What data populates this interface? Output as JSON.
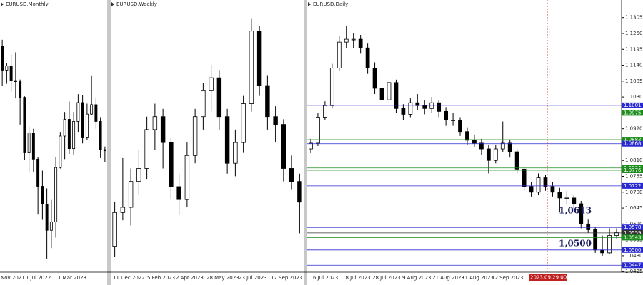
{
  "panels": [
    {
      "title": "EURUSD,Monthly",
      "xlabels": [
        "Nov 2021",
        "1 Jul 2022",
        "1 Mar 2023"
      ],
      "ylim": [
        0.94,
        1.2
      ],
      "candles": [
        [
          1.156,
          1.162,
          1.118,
          1.133
        ],
        [
          1.133,
          1.14,
          1.12,
          1.137
        ],
        [
          1.137,
          1.148,
          1.112,
          1.123
        ],
        [
          1.123,
          1.15,
          1.106,
          1.122
        ],
        [
          1.122,
          1.124,
          1.081,
          1.107
        ],
        [
          1.107,
          1.108,
          1.047,
          1.054
        ],
        [
          1.054,
          1.079,
          1.035,
          1.073
        ],
        [
          1.073,
          1.077,
          1.036,
          1.048
        ],
        [
          1.048,
          1.05,
          0.995,
          1.022
        ],
        [
          1.022,
          1.037,
          0.99,
          1.005
        ],
        [
          1.005,
          1.02,
          0.953,
          0.98
        ],
        [
          0.98,
          1.009,
          0.963,
          0.988
        ],
        [
          0.988,
          1.05,
          0.973,
          1.04
        ],
        [
          1.04,
          1.074,
          1.039,
          1.07
        ],
        [
          1.07,
          1.093,
          1.048,
          1.086
        ],
        [
          1.086,
          1.103,
          1.053,
          1.058
        ],
        [
          1.058,
          1.093,
          1.052,
          1.084
        ],
        [
          1.084,
          1.11,
          1.074,
          1.102
        ],
        [
          1.102,
          1.109,
          1.063,
          1.069
        ],
        [
          1.069,
          1.101,
          1.066,
          1.091
        ],
        [
          1.091,
          1.128,
          1.09,
          1.1
        ],
        [
          1.1,
          1.106,
          1.077,
          1.084
        ],
        [
          1.084,
          1.088,
          1.049,
          1.057
        ],
        [
          1.057,
          1.06,
          1.045,
          1.056
        ]
      ]
    },
    {
      "title": "EURUSD,Weekly",
      "xlabels": [
        "11 Dec 2022",
        "5 Feb 2023",
        "2 Apr 2023",
        "28 May 2023",
        "23 Jul 2023",
        "17 Sep 2023"
      ],
      "ylim": [
        1.03,
        1.135
      ],
      "candles": [
        [
          1.04,
          1.057,
          1.036,
          1.053
        ],
        [
          1.053,
          1.074,
          1.05,
          1.055
        ],
        [
          1.055,
          1.07,
          1.048,
          1.065
        ],
        [
          1.065,
          1.077,
          1.06,
          1.07
        ],
        [
          1.07,
          1.09,
          1.066,
          1.085
        ],
        [
          1.085,
          1.095,
          1.077,
          1.09
        ],
        [
          1.09,
          1.093,
          1.07,
          1.08
        ],
        [
          1.08,
          1.082,
          1.058,
          1.063
        ],
        [
          1.063,
          1.068,
          1.052,
          1.058
        ],
        [
          1.058,
          1.08,
          1.055,
          1.075
        ],
        [
          1.075,
          1.093,
          1.072,
          1.09
        ],
        [
          1.09,
          1.103,
          1.085,
          1.1
        ],
        [
          1.1,
          1.11,
          1.092,
          1.105
        ],
        [
          1.105,
          1.108,
          1.085,
          1.09
        ],
        [
          1.09,
          1.093,
          1.068,
          1.072
        ],
        [
          1.072,
          1.085,
          1.067,
          1.08
        ],
        [
          1.08,
          1.098,
          1.076,
          1.095
        ],
        [
          1.095,
          1.128,
          1.092,
          1.123
        ],
        [
          1.123,
          1.125,
          1.098,
          1.102
        ],
        [
          1.102,
          1.106,
          1.085,
          1.09
        ],
        [
          1.09,
          1.094,
          1.08,
          1.087
        ],
        [
          1.087,
          1.089,
          1.065,
          1.07
        ],
        [
          1.07,
          1.075,
          1.062,
          1.065
        ],
        [
          1.065,
          1.068,
          1.045,
          1.057
        ]
      ]
    },
    {
      "title": "EURUSD,Daily",
      "xlabels": [
        "6 Jul 2023",
        "18 Jul 2023",
        "28 Jul 2023",
        "9 Aug 2023",
        "21 Aug 2023",
        "31 Aug 2023",
        "12 Sep 2023"
      ],
      "cursor_label": "2023.09.29 00:00",
      "ylim": [
        1.0423,
        1.1366
      ],
      "yticks": [
        {
          "value": 1.1305,
          "label": "1.1305"
        },
        {
          "value": 1.125,
          "label": "1.1250"
        },
        {
          "value": 1.1195,
          "label": "1.1195"
        },
        {
          "value": 1.114,
          "label": "1.1140"
        },
        {
          "value": 1.1085,
          "label": "1.1085"
        },
        {
          "value": 1.103,
          "label": "1.1030"
        },
        {
          "value": 1.0975,
          "label": "1.0975"
        },
        {
          "value": 1.092,
          "label": "1.0920"
        },
        {
          "value": 1.0865,
          "label": "1.0865"
        },
        {
          "value": 1.081,
          "label": "1.0810"
        },
        {
          "value": 1.0755,
          "label": "1.0755"
        },
        {
          "value": 1.07,
          "label": "1.0700"
        },
        {
          "value": 1.0645,
          "label": "1.0645"
        },
        {
          "value": 1.059,
          "label": "1.0590"
        },
        {
          "value": 1.0535,
          "label": "1.0535"
        },
        {
          "value": 1.048,
          "label": "1.0480"
        },
        {
          "value": 1.0425,
          "label": "1.0425"
        }
      ],
      "levels": [
        {
          "value": 1.1001,
          "label": "1.1001",
          "color": "#2a2ad0"
        },
        {
          "value": 1.0975,
          "label": "1.0975",
          "color": "#1e8c1e"
        },
        {
          "value": 1.0882,
          "label": "1.0882",
          "color": "#1e8c1e"
        },
        {
          "value": 1.0868,
          "label": "1.0868",
          "color": "#2a2ad0"
        },
        {
          "value": 1.0784,
          "label": "1.0784",
          "color": "#1e8c1e"
        },
        {
          "value": 1.0776,
          "label": "1.0776",
          "color": "#1e8c1e"
        },
        {
          "value": 1.0722,
          "label": "1.0722",
          "color": "#2a2ad0"
        },
        {
          "value": 1.0578,
          "label": "1.0578",
          "color": "#2a2ad0"
        },
        {
          "value": 1.0559,
          "label": "1.0559",
          "color": "#333333"
        },
        {
          "value": 1.0543,
          "label": "1.0543",
          "color": "#1e8c1e"
        },
        {
          "value": 1.05,
          "label": "1.0500",
          "color": "#2a2ad0"
        },
        {
          "value": 1.0447,
          "label": "1.0447",
          "color": "#2a2ad0"
        }
      ],
      "annotations": [
        {
          "value": 1.0613,
          "label": "1,0613"
        },
        {
          "value": 1.05,
          "label": "1,0500"
        }
      ],
      "candles": [
        [
          1.085,
          1.0885,
          1.0835,
          1.087
        ],
        [
          1.087,
          1.0975,
          1.086,
          1.096
        ],
        [
          1.096,
          1.1015,
          1.095,
          1.1
        ],
        [
          1.1,
          1.1145,
          1.099,
          1.113
        ],
        [
          1.113,
          1.124,
          1.112,
          1.122
        ],
        [
          1.122,
          1.1275,
          1.12,
          1.123
        ],
        [
          1.123,
          1.125,
          1.12,
          1.123
        ],
        [
          1.123,
          1.1245,
          1.118,
          1.12
        ],
        [
          1.12,
          1.1215,
          1.111,
          1.113
        ],
        [
          1.113,
          1.115,
          1.104,
          1.106
        ],
        [
          1.106,
          1.1075,
          1.1,
          1.102
        ],
        [
          1.102,
          1.1095,
          1.101,
          1.108
        ],
        [
          1.108,
          1.109,
          1.0975,
          1.099
        ],
        [
          1.099,
          1.1005,
          1.095,
          1.097
        ],
        [
          1.097,
          1.1025,
          1.096,
          1.101
        ],
        [
          1.101,
          1.104,
          1.0985,
          1.1
        ],
        [
          1.1,
          1.102,
          1.097,
          1.099
        ],
        [
          1.099,
          1.103,
          1.0975,
          1.101
        ],
        [
          1.101,
          1.102,
          1.096,
          1.098
        ],
        [
          1.098,
          1.0995,
          1.093,
          1.095
        ],
        [
          1.095,
          1.0975,
          1.093,
          1.095
        ],
        [
          1.095,
          1.096,
          1.0895,
          1.091
        ],
        [
          1.091,
          1.0925,
          1.0865,
          1.088
        ],
        [
          1.088,
          1.09,
          1.0855,
          1.087
        ],
        [
          1.087,
          1.0885,
          1.083,
          1.085
        ],
        [
          1.085,
          1.0865,
          1.0765,
          1.081
        ],
        [
          1.081,
          1.0865,
          1.08,
          1.085
        ],
        [
          1.085,
          1.0945,
          1.084,
          1.087
        ],
        [
          1.087,
          1.088,
          1.082,
          1.084
        ],
        [
          1.084,
          1.085,
          1.0765,
          1.078
        ],
        [
          1.078,
          1.079,
          1.0705,
          1.072
        ],
        [
          1.072,
          1.0735,
          1.0685,
          1.07
        ],
        [
          1.07,
          1.0765,
          1.069,
          1.075
        ],
        [
          1.075,
          1.076,
          1.0705,
          1.072
        ],
        [
          1.072,
          1.0735,
          1.0685,
          1.07
        ],
        [
          1.07,
          1.0715,
          1.063,
          1.068
        ],
        [
          1.068,
          1.0705,
          1.066,
          1.068
        ],
        [
          1.068,
          1.069,
          1.064,
          1.066
        ],
        [
          1.066,
          1.067,
          1.0575,
          1.059
        ],
        [
          1.059,
          1.0605,
          1.056,
          1.057
        ],
        [
          1.057,
          1.058,
          1.049,
          1.05
        ],
        [
          1.05,
          1.055,
          1.048,
          1.049
        ],
        [
          1.049,
          1.0575,
          1.0485,
          1.055
        ],
        [
          1.055,
          1.0575,
          1.054,
          1.056
        ]
      ]
    }
  ]
}
